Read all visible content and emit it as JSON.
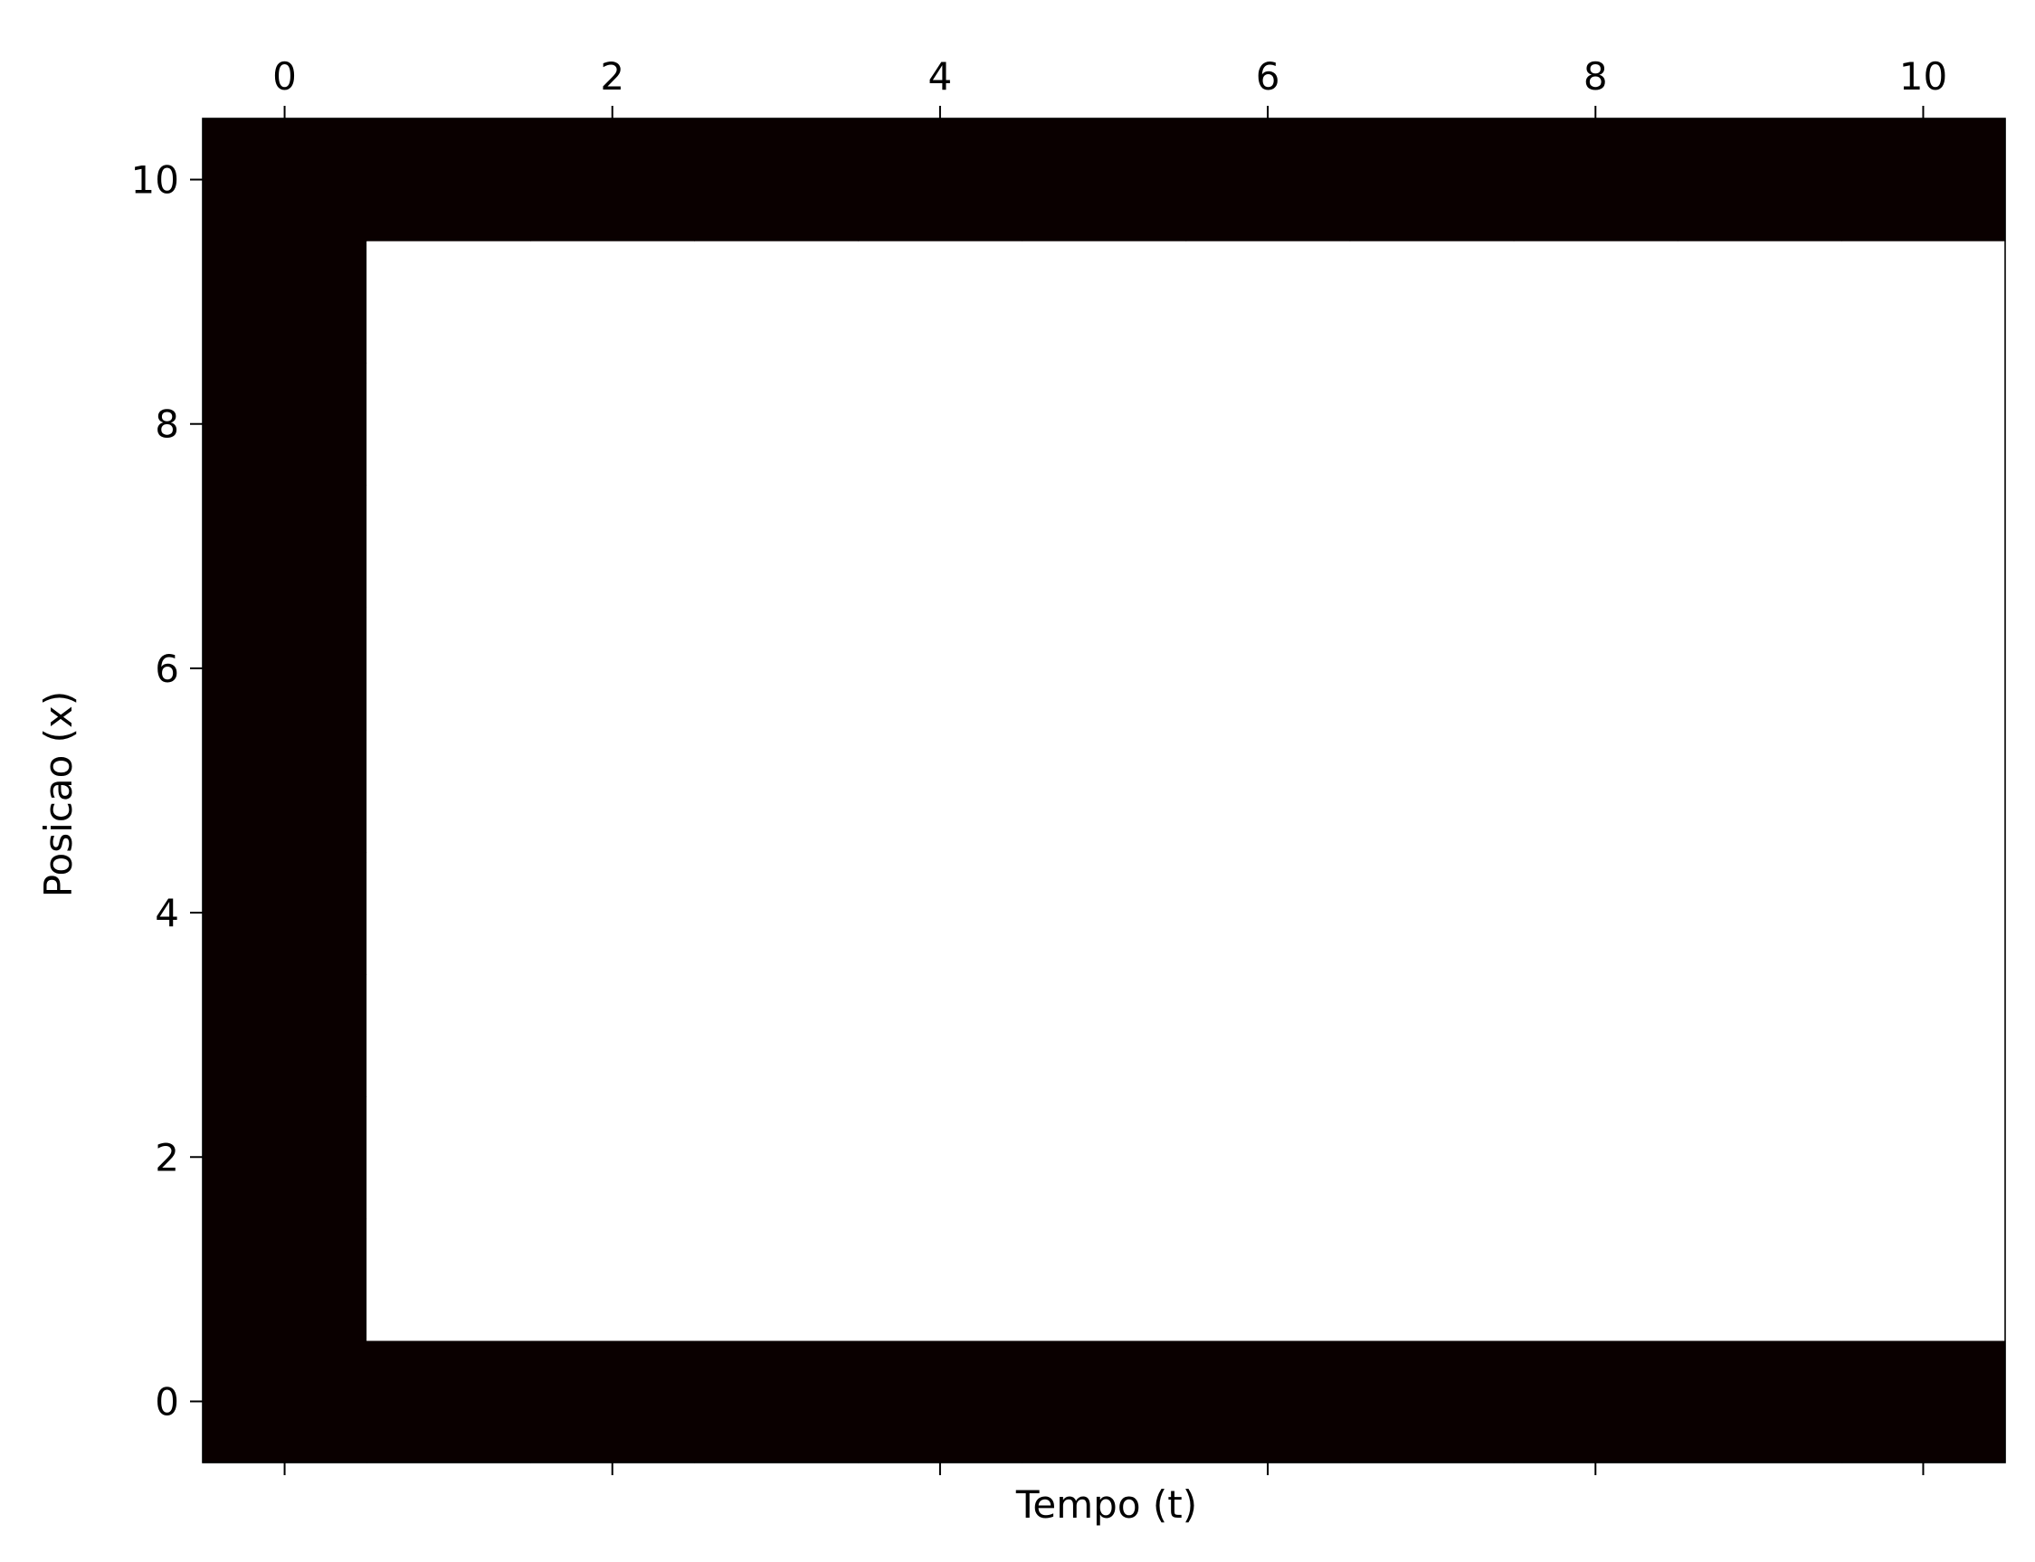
{
  "chart_data": {
    "type": "heatmap",
    "title": "",
    "xlabel": "Tempo (t)",
    "ylabel": "Posicao (x)",
    "x_tick_labels": [
      "0",
      "2",
      "4",
      "6",
      "8",
      "10"
    ],
    "y_tick_labels": [
      "0",
      "2",
      "4",
      "6",
      "8",
      "10"
    ],
    "x_tick_position": "top",
    "xlim": [
      -0.5,
      10.5
    ],
    "ylim": [
      -0.5,
      10.5
    ],
    "grid": false,
    "colormap": {
      "low": "#0a0000",
      "high": "#ffffff"
    },
    "x": [
      0,
      1,
      2,
      3,
      4,
      5,
      6,
      7,
      8,
      9,
      10
    ],
    "y": [
      0,
      1,
      2,
      3,
      4,
      5,
      6,
      7,
      8,
      9,
      10
    ],
    "z": [
      [
        0,
        0,
        0,
        0,
        0,
        0,
        0,
        0,
        0,
        0,
        0
      ],
      [
        0,
        1,
        1,
        1,
        1,
        1,
        1,
        1,
        1,
        1,
        1
      ],
      [
        0,
        1,
        1,
        1,
        1,
        1,
        1,
        1,
        1,
        1,
        1
      ],
      [
        0,
        1,
        1,
        1,
        1,
        1,
        1,
        1,
        1,
        1,
        1
      ],
      [
        0,
        1,
        1,
        1,
        1,
        1,
        1,
        1,
        1,
        1,
        1
      ],
      [
        0,
        1,
        1,
        1,
        1,
        1,
        1,
        1,
        1,
        1,
        1
      ],
      [
        0,
        1,
        1,
        1,
        1,
        1,
        1,
        1,
        1,
        1,
        1
      ],
      [
        0,
        1,
        1,
        1,
        1,
        1,
        1,
        1,
        1,
        1,
        1
      ],
      [
        0,
        1,
        1,
        1,
        1,
        1,
        1,
        1,
        1,
        1,
        1
      ],
      [
        0,
        1,
        1,
        1,
        1,
        1,
        1,
        1,
        1,
        1,
        1
      ],
      [
        0,
        0,
        0,
        0,
        0,
        0,
        0,
        0,
        0,
        0,
        0
      ]
    ]
  }
}
